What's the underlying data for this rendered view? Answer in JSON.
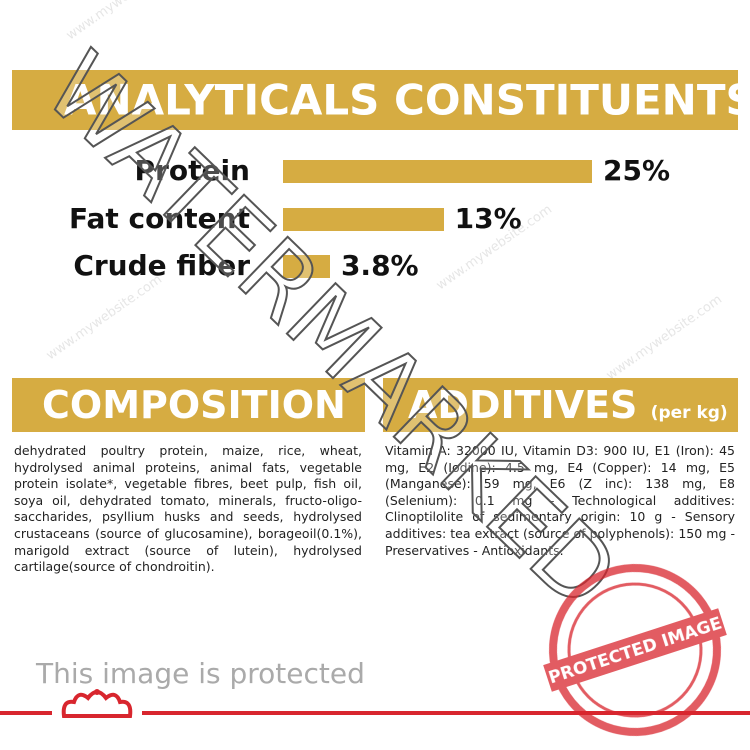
{
  "analyticals": {
    "title": "ANALYTICALS CONSTITUENTS",
    "items": [
      {
        "label": "Protein",
        "value": 25,
        "value_label": "25%"
      },
      {
        "label": "Fat content",
        "value": 13,
        "value_label": "13%"
      },
      {
        "label": "Crude fiber",
        "value": 3.8,
        "value_label": "3.8%"
      }
    ]
  },
  "composition": {
    "title": "COMPOSITION",
    "text": "dehydrated poultry protein, maize, rice, wheat, hydrolysed animal proteins, animal fats, vegetable protein isolate*, vegetable fibres, beet pulp, fish oil, soya oil, dehydrated tomato, minerals, fructo-oligo-saccharides, psyllium husks and seeds, hydrolysed crustaceans (source of glucosamine), borageoil(0.1%), marigold extract (source of lutein), hydrolysed cartilage(source of chondroitin)."
  },
  "additives": {
    "title": "ADDITIVES",
    "subtitle": "(per kg)",
    "text": "Vitamin A: 32000 IU, Vitamin D3: 900 IU, E1 (Iron): 45 mg, E2 (Iodine): 4.5 mg, E4 (Copper): 14 mg, E5 (Manganese): 59 mg, E6 (Z inc): 138 mg, E8 (Selenium): 0.1 mg - Technological additives: Clinoptilolite of sedimentary origin: 10 g - Sensory additives: tea extract (source of polyphenols): 150 mg - Preservatives - Antioxidants."
  },
  "watermark": {
    "text": "WATERMARKED",
    "note": "This image is protected",
    "stamp": "PROTECTED IMAGE",
    "url": "www.mywebsite.com"
  }
}
